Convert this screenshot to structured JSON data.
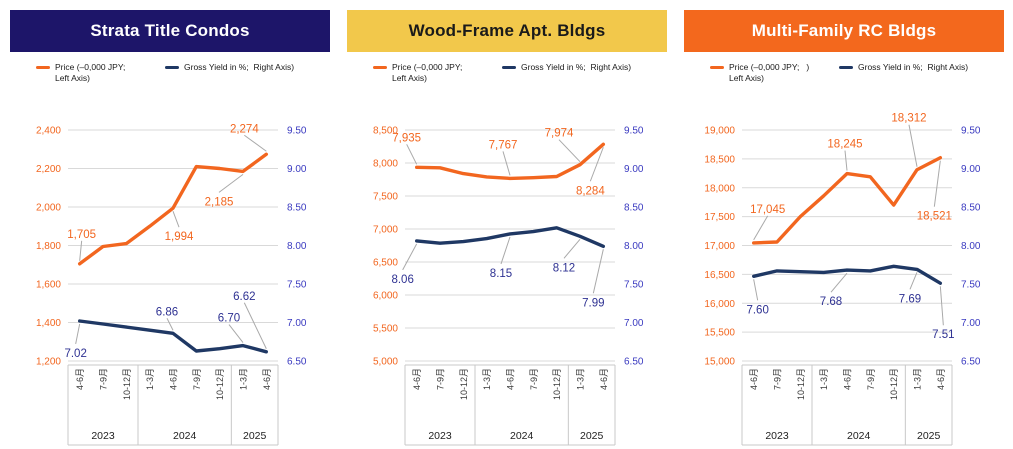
{
  "colors": {
    "price_line": "#F2661F",
    "yield_line": "#1F3864",
    "left_axis_text": "#F2661F",
    "right_axis_text": "#3A3AC0",
    "price_label_text": "#F2661F",
    "yield_label_text": "#2E3192",
    "gridline": "#D9D9D9",
    "axis_box_line": "#C8C8C8",
    "leader_line": "#A9A9A9",
    "quarter_text": "#3A3A3A",
    "year_text": "#222222"
  },
  "panels": [
    {
      "title": "Strata Title Condos",
      "header_bg": "#1D1569",
      "header_fg": "#FFFFFF",
      "legend": {
        "price_line1": "Price (–0,000 JPY;",
        "price_line2": "Left Axis)",
        "yield_label": "Gross Yield in %;  Right Axis)"
      }
    },
    {
      "title": "Wood-Frame Apt. Bldgs",
      "header_bg": "#F2C84B",
      "header_fg": "#1A1A1A",
      "legend": {
        "price_line1": "Price (–0,000 JPY;",
        "price_line2": "Left Axis)",
        "yield_label": "Gross Yield in %;  Right Axis)"
      }
    },
    {
      "title": "Multi-Family RC Bldgs",
      "header_bg": "#F3681D",
      "header_fg": "#FFFFFF",
      "legend": {
        "price_line1": "Price (–0,000 JPY;   )",
        "price_line2": "Left Axis)",
        "yield_label": "Gross Yield in %;  Right Axis)"
      }
    }
  ],
  "chart_data": [
    {
      "type": "line",
      "title": "Strata Title Condos",
      "categories": [
        "4-6月",
        "7-9月",
        "10-12月",
        "1-3月",
        "4-6月",
        "7-9月",
        "10-12月",
        "1-3月",
        "4-6月"
      ],
      "year_groups": [
        {
          "label": "2023",
          "span": 3
        },
        {
          "label": "2024",
          "span": 4
        },
        {
          "label": "2025",
          "span": 2
        }
      ],
      "left_axis": {
        "min": 1200,
        "max": 2400,
        "step": 200,
        "ticks": [
          "2,400",
          "2,200",
          "2,000",
          "1,800",
          "1,600",
          "1,400",
          "1,200"
        ]
      },
      "right_axis": {
        "min": 6.5,
        "max": 9.5,
        "step": 0.5,
        "ticks": [
          "9.50",
          "9.00",
          "8.50",
          "8.00",
          "7.50",
          "7.00",
          "6.50"
        ]
      },
      "series": [
        {
          "name": "Price",
          "axis": "left",
          "values": [
            1705,
            1795,
            1810,
            1900,
            1994,
            2210,
            2200,
            2185,
            2274
          ],
          "point_labels": [
            {
              "index": 0,
              "text": "1,705",
              "dx": 2,
              "dy": -30
            },
            {
              "index": 4,
              "text": "1,994",
              "dx": 6,
              "dy": 28
            },
            {
              "index": 7,
              "text": "2,185",
              "dx": -24,
              "dy": 30
            },
            {
              "index": 8,
              "text": "2,274",
              "dx": -22,
              "dy": -26
            }
          ]
        },
        {
          "name": "Gross Yield in %",
          "axis": "right",
          "values": [
            7.02,
            6.98,
            6.94,
            6.9,
            6.86,
            6.63,
            6.66,
            6.7,
            6.62
          ],
          "point_labels": [
            {
              "index": 0,
              "text": "7.02",
              "dx": -4,
              "dy": 32
            },
            {
              "index": 4,
              "text": "6.86",
              "dx": -6,
              "dy": -22
            },
            {
              "index": 7,
              "text": "6.70",
              "dx": -14,
              "dy": -28
            },
            {
              "index": 8,
              "text": "6.62",
              "dx": -22,
              "dy": -56
            }
          ]
        }
      ]
    },
    {
      "type": "line",
      "title": "Wood-Frame Apt. Bldgs",
      "categories": [
        "4-6月",
        "7-9月",
        "10-12月",
        "1-3月",
        "4-6月",
        "7-9月",
        "10-12月",
        "1-3月",
        "4-6月"
      ],
      "year_groups": [
        {
          "label": "2023",
          "span": 3
        },
        {
          "label": "2024",
          "span": 4
        },
        {
          "label": "2025",
          "span": 2
        }
      ],
      "left_axis": {
        "min": 5000,
        "max": 8500,
        "step": 500,
        "ticks": [
          "8,500",
          "8,000",
          "7,500",
          "7,000",
          "6,500",
          "6,000",
          "5,500",
          "5,000"
        ]
      },
      "right_axis": {
        "min": 6.5,
        "max": 9.5,
        "step": 0.5,
        "ticks": [
          "9.50",
          "9.00",
          "8.50",
          "8.00",
          "7.50",
          "7.00",
          "6.50"
        ]
      },
      "series": [
        {
          "name": "Price",
          "axis": "left",
          "values": [
            7935,
            7928,
            7840,
            7790,
            7767,
            7778,
            7795,
            7974,
            8284
          ],
          "point_labels": [
            {
              "index": 0,
              "text": "7,935",
              "dx": -10,
              "dy": -30
            },
            {
              "index": 4,
              "text": "7,767",
              "dx": -7,
              "dy": -34
            },
            {
              "index": 7,
              "text": "7,974",
              "dx": -21,
              "dy": -32
            },
            {
              "index": 8,
              "text": "8,284",
              "dx": -13,
              "dy": 46
            }
          ]
        },
        {
          "name": "Gross Yield in %",
          "axis": "right",
          "values": [
            8.06,
            8.03,
            8.05,
            8.09,
            8.15,
            8.18,
            8.23,
            8.12,
            7.99
          ],
          "point_labels": [
            {
              "index": 0,
              "text": "8.06",
              "dx": -14,
              "dy": 38
            },
            {
              "index": 4,
              "text": "8.15",
              "dx": -9,
              "dy": 39
            },
            {
              "index": 7,
              "text": "8.12",
              "dx": -16,
              "dy": 31
            },
            {
              "index": 8,
              "text": "7.99",
              "dx": -10,
              "dy": 56
            }
          ]
        }
      ]
    },
    {
      "type": "line",
      "title": "Multi-Family RC Bldgs",
      "categories": [
        "4-6月",
        "7-9月",
        "10-12月",
        "1-3月",
        "4-6月",
        "7-9月",
        "10-12月",
        "1-3月",
        "4-6月"
      ],
      "year_groups": [
        {
          "label": "2023",
          "span": 3
        },
        {
          "label": "2024",
          "span": 4
        },
        {
          "label": "2025",
          "span": 2
        }
      ],
      "left_axis": {
        "min": 15000,
        "max": 19000,
        "step": 500,
        "ticks": [
          "19,000",
          "18,500",
          "18,000",
          "17,500",
          "17,000",
          "16,500",
          "16,000",
          "15,500",
          "15,000"
        ]
      },
      "right_axis": {
        "min": 6.5,
        "max": 9.5,
        "step": 0.5,
        "ticks": [
          "9.50",
          "9.00",
          "8.50",
          "8.00",
          "7.50",
          "7.00",
          "6.50"
        ]
      },
      "series": [
        {
          "name": "Price",
          "axis": "left",
          "values": [
            17045,
            17060,
            17500,
            17860,
            18245,
            18190,
            17700,
            18312,
            18521
          ],
          "point_labels": [
            {
              "index": 0,
              "text": "17,045",
              "dx": 14,
              "dy": -34
            },
            {
              "index": 4,
              "text": "18,245",
              "dx": -2,
              "dy": -30
            },
            {
              "index": 7,
              "text": "18,312",
              "dx": -8,
              "dy": -52
            },
            {
              "index": 8,
              "text": "18,521",
              "dx": -6,
              "dy": 58
            }
          ]
        },
        {
          "name": "Gross Yield in %",
          "axis": "right",
          "values": [
            7.6,
            7.67,
            7.66,
            7.65,
            7.68,
            7.67,
            7.73,
            7.69,
            7.51
          ],
          "point_labels": [
            {
              "index": 0,
              "text": "7.60",
              "dx": 4,
              "dy": 33
            },
            {
              "index": 4,
              "text": "7.68",
              "dx": -16,
              "dy": 31
            },
            {
              "index": 7,
              "text": "7.69",
              "dx": -7,
              "dy": 29
            },
            {
              "index": 8,
              "text": "7.51",
              "dx": 3,
              "dy": 51
            }
          ]
        }
      ]
    }
  ]
}
